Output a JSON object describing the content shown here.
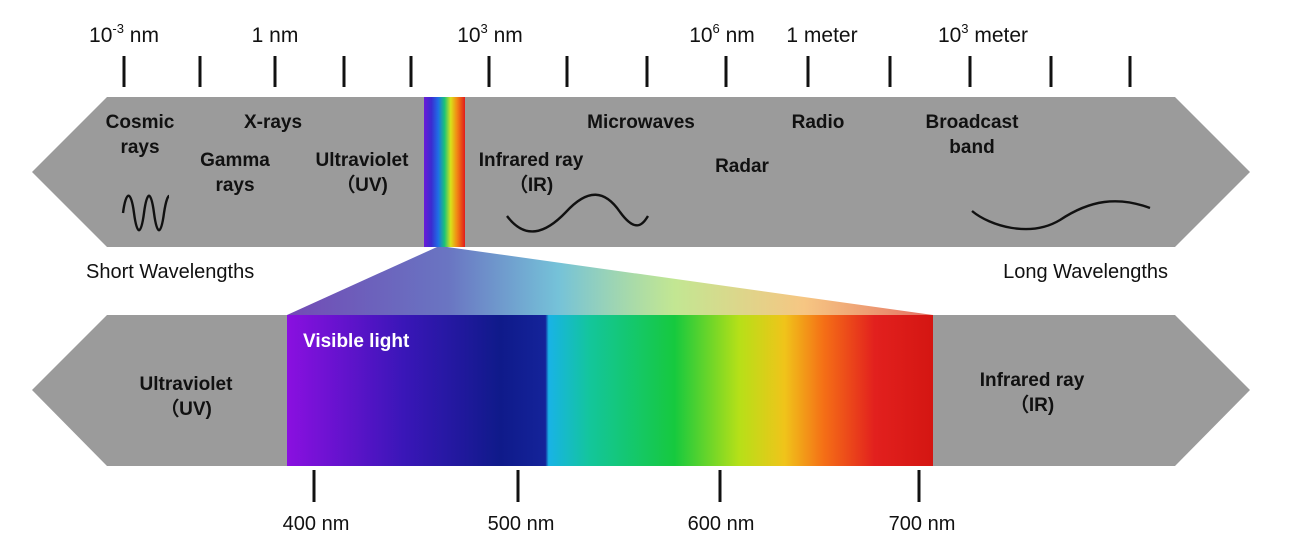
{
  "colors": {
    "band": "#9b9b9b",
    "ink": "#111111",
    "visible_label": "#ffffff"
  },
  "top_scale": {
    "labels": [
      {
        "base": "10",
        "exp": "-3",
        "unit": " nm"
      },
      {
        "base": "1 nm",
        "exp": "",
        "unit": ""
      },
      {
        "base": "10",
        "exp": "3",
        "unit": " nm"
      },
      {
        "base": "10",
        "exp": "6",
        "unit": " nm"
      },
      {
        "base": "1 meter",
        "exp": "",
        "unit": ""
      },
      {
        "base": "10",
        "exp": "3",
        "unit": " meter"
      }
    ]
  },
  "bands": {
    "cosmic": [
      "Cosmic",
      "rays"
    ],
    "gamma": [
      "Gamma",
      "rays"
    ],
    "xrays": "X-rays",
    "uv": [
      "Ultraviolet",
      "（UV)"
    ],
    "infrared": [
      "Infrared ray",
      "（IR)"
    ],
    "microwaves": "Microwaves",
    "radar": "Radar",
    "radio": "Radio",
    "broadcast": [
      "Broadcast",
      "band"
    ]
  },
  "short_wavelengths": "Short Wavelengths",
  "long_wavelengths": "Long Wavelengths",
  "visible": {
    "title": "Visible light",
    "uv": [
      "Ultraviolet",
      "（UV)"
    ],
    "ir": [
      "Infrared ray",
      "（IR)"
    ]
  },
  "bottom_scale": [
    "400 nm",
    "500 nm",
    "600 nm",
    "700 nm"
  ],
  "icons": {
    "short_wave": "wave-high-frequency-icon",
    "mid_wave": "wave-medium-frequency-icon",
    "long_wave": "wave-low-frequency-icon"
  }
}
